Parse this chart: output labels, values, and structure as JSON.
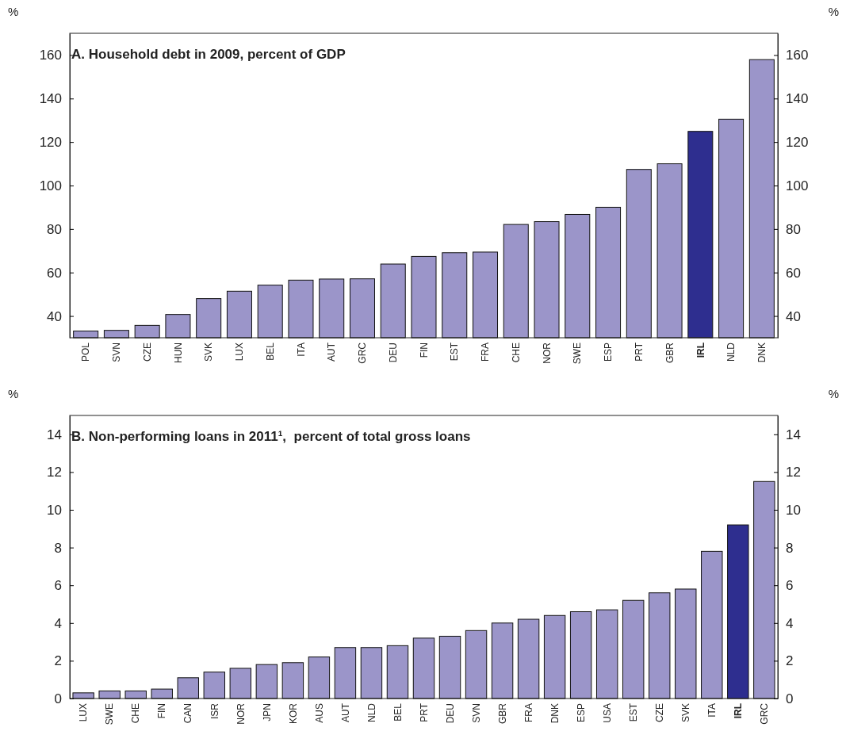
{
  "chart_data": [
    {
      "type": "bar",
      "title": "A. Household debt in 2009, percent of GDP",
      "ylabel": "%",
      "y2label": "%",
      "categories": [
        "POL",
        "SVN",
        "CZE",
        "HUN",
        "SVK",
        "LUX",
        "BEL",
        "ITA",
        "AUT",
        "GRC",
        "DEU",
        "FIN",
        "EST",
        "FRA",
        "CHE",
        "NOR",
        "SWE",
        "ESP",
        "PRT",
        "GBR",
        "IRL",
        "NLD",
        "DNK"
      ],
      "values": [
        33.1,
        33.4,
        35.7,
        40.7,
        48,
        51.4,
        54.2,
        56.5,
        57,
        57.1,
        63.9,
        67.4,
        69.1,
        69.4,
        82.1,
        83.4,
        86.7,
        90,
        107.4,
        110,
        124.9,
        130.5,
        157.9
      ],
      "colors": [
        "#9b95c9",
        "#9b95c9",
        "#9b95c9",
        "#9b95c9",
        "#9b95c9",
        "#9b95c9",
        "#9b95c9",
        "#9b95c9",
        "#9b95c9",
        "#9b95c9",
        "#9b95c9",
        "#9b95c9",
        "#9b95c9",
        "#9b95c9",
        "#9b95c9",
        "#9b95c9",
        "#9b95c9",
        "#9b95c9",
        "#9b95c9",
        "#9b95c9",
        "#2e2e8f",
        "#9b95c9",
        "#9b95c9"
      ],
      "ylim": [
        30,
        170
      ],
      "yticks": [
        40,
        60,
        80,
        100,
        120,
        140,
        160
      ],
      "y2lim": [
        30,
        170
      ],
      "y2ticks": [
        40,
        60,
        80,
        100,
        120,
        140,
        160
      ],
      "grid": false
    },
    {
      "type": "bar",
      "title": "B. Non-performing loans in 2011¹,  percent of total gross loans",
      "ylabel": "%",
      "y2label": "%",
      "categories": [
        "LUX",
        "SWE",
        "CHE",
        "FIN",
        "CAN",
        "ISR",
        "NOR",
        "JPN",
        "KOR",
        "AUS",
        "AUT",
        "NLD",
        "BEL",
        "PRT",
        "DEU",
        "SVN",
        "GBR",
        "FRA",
        "DNK",
        "ESP",
        "USA",
        "EST",
        "CZE",
        "SVK",
        "ITA",
        "IRL",
        "GRC"
      ],
      "values": [
        0.3,
        0.4,
        0.4,
        0.5,
        1.1,
        1.4,
        1.6,
        1.8,
        1.9,
        2.2,
        2.7,
        2.7,
        2.8,
        3.2,
        3.3,
        3.6,
        4,
        4.2,
        4.4,
        4.6,
        4.7,
        5.2,
        5.6,
        5.8,
        7.8,
        9.2,
        11.5
      ],
      "colors": [
        "#9b95c9",
        "#9b95c9",
        "#9b95c9",
        "#9b95c9",
        "#9b95c9",
        "#9b95c9",
        "#9b95c9",
        "#9b95c9",
        "#9b95c9",
        "#9b95c9",
        "#9b95c9",
        "#9b95c9",
        "#9b95c9",
        "#9b95c9",
        "#9b95c9",
        "#9b95c9",
        "#9b95c9",
        "#9b95c9",
        "#9b95c9",
        "#9b95c9",
        "#9b95c9",
        "#9b95c9",
        "#9b95c9",
        "#9b95c9",
        "#9b95c9",
        "#2e2e8f",
        "#9b95c9"
      ],
      "ylim": [
        0,
        15
      ],
      "yticks": [
        0,
        2,
        4,
        6,
        8,
        10,
        12,
        14
      ],
      "y2lim": [
        0,
        15
      ],
      "y2ticks": [
        0,
        2,
        4,
        6,
        8,
        10,
        12,
        14
      ],
      "grid": false
    }
  ]
}
